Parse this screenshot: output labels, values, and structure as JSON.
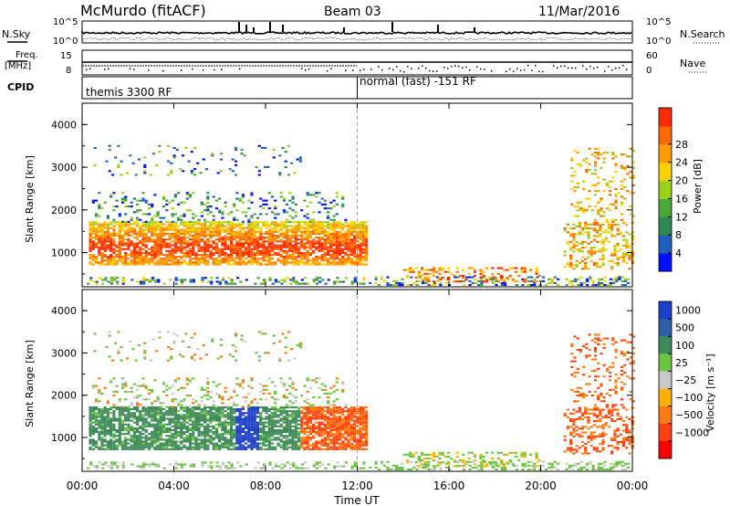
{
  "header": {
    "station": "McMurdo (fitACF)",
    "beam": "Beam 03",
    "date": "11/Mar/2016"
  },
  "status_panels": {
    "nsky_label": "N.Sky",
    "nsearch_label": "N.Search",
    "freq_label_1": "Freq.",
    "freq_label_2": "[MHz]",
    "nave_label": "Nave",
    "cpid_label": "CPID",
    "noise_ticks_left": [
      "10^5",
      "10^0"
    ],
    "noise_ticks_right": [
      "10^5",
      "10^0"
    ],
    "freq_ticks_left": [
      "15",
      "8"
    ],
    "nave_ticks_right": [
      "60",
      "0"
    ],
    "cpid_segments": [
      {
        "label": "themis 3300 RF",
        "start_hour": 0,
        "end_hour": 12
      },
      {
        "label": "normal (fast) -151 RF",
        "start_hour": 12,
        "end_hour": 24
      }
    ]
  },
  "chart_data": [
    {
      "type": "heatmap",
      "title": "",
      "xlabel": "",
      "ylabel": "Slant Range [km]",
      "colorbar_label": "Power [dB]",
      "colorbar_ticks": [
        "4",
        "8",
        "12",
        "16",
        "20",
        "24",
        "28"
      ],
      "colorbar_colors": [
        "#0010ff",
        "#1f5fc0",
        "#2f8a58",
        "#48a838",
        "#9ad21a",
        "#ffd000",
        "#ff9c00",
        "#ff6a00",
        "#ff2a00"
      ],
      "y_ticks": [
        "1000",
        "2000",
        "3000",
        "4000"
      ],
      "ylim": [
        200,
        4500
      ],
      "xlim": [
        0,
        24
      ],
      "cpid_change_hour": 12
    },
    {
      "type": "heatmap",
      "title": "",
      "xlabel": "Time UT",
      "ylabel": "Slant Range [km]",
      "colorbar_label": "Velocity [m s⁻¹]",
      "colorbar_ticks": [
        "1000",
        "500",
        "100",
        "25",
        "−25",
        "−100",
        "−500",
        "−1000"
      ],
      "colorbar_colors": [
        "#1e3fc8",
        "#2f5fa8",
        "#3f8a5a",
        "#6cc540",
        "#c8c8c8",
        "#ffb000",
        "#ff7a10",
        "#ff4010",
        "#ff0000"
      ],
      "y_ticks": [
        "1000",
        "2000",
        "3000",
        "4000"
      ],
      "x_ticks": [
        "00:00",
        "04:00",
        "08:00",
        "12:00",
        "16:00",
        "20:00",
        "00:00"
      ],
      "ylim": [
        200,
        4500
      ],
      "xlim": [
        0,
        24
      ],
      "cpid_change_hour": 12
    }
  ]
}
